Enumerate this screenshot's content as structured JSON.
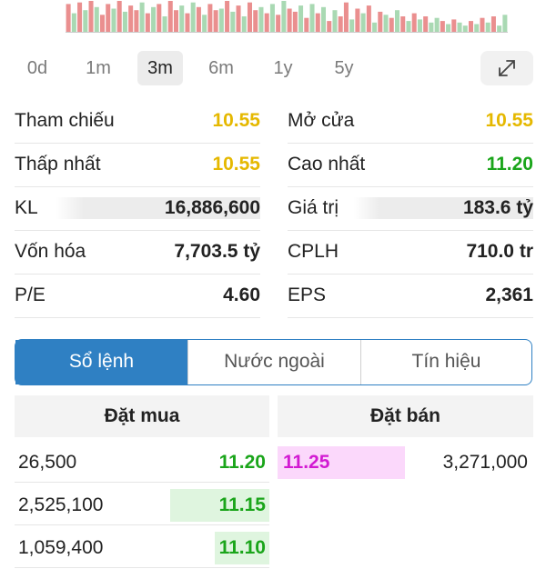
{
  "colors": {
    "up": "#1aa51a",
    "down": "#e27373",
    "ref": "#e5b800",
    "ceiling": "#d21ad2",
    "accent": "#2f80c3",
    "vol_up": "#a9d9b3",
    "vol_down": "#ea8f8f"
  },
  "volume_bars": {
    "values": [
      0.9,
      0.6,
      0.95,
      0.7,
      1.0,
      0.8,
      0.55,
      0.9,
      0.75,
      1.0,
      0.65,
      0.85,
      0.7,
      0.95,
      0.6,
      0.8,
      0.9,
      0.5,
      1.0,
      0.7,
      0.85,
      0.6,
      0.95,
      0.8,
      0.55,
      0.9,
      0.7,
      0.75,
      1.0,
      0.65,
      0.85,
      0.5,
      0.95,
      0.7,
      0.8,
      0.6,
      0.9,
      0.55,
      1.0,
      0.75,
      0.65,
      0.85,
      0.45,
      0.9,
      0.6,
      0.8,
      0.35,
      0.7,
      0.5,
      0.95,
      0.4,
      0.75,
      0.6,
      0.85,
      0.3,
      0.65,
      0.55,
      0.45,
      0.7,
      0.5,
      0.35,
      0.6,
      0.4,
      0.5,
      0.3,
      0.45,
      0.35,
      0.25,
      0.4,
      0.3,
      0.2,
      0.35,
      0.25,
      0.45,
      0.3,
      0.5,
      0.2,
      0.55
    ],
    "directions": [
      "d",
      "u",
      "d",
      "u",
      "d",
      "u",
      "d",
      "d",
      "u",
      "d",
      "u",
      "d",
      "d",
      "u",
      "d",
      "u",
      "d",
      "u",
      "d",
      "d",
      "u",
      "d",
      "u",
      "d",
      "u",
      "d",
      "d",
      "u",
      "d",
      "u",
      "d",
      "u",
      "d",
      "d",
      "u",
      "d",
      "u",
      "d",
      "u",
      "d",
      "d",
      "u",
      "d",
      "u",
      "d",
      "u",
      "d",
      "u",
      "d",
      "d",
      "u",
      "d",
      "u",
      "d",
      "u",
      "d",
      "u",
      "d",
      "u",
      "d",
      "u",
      "d",
      "u",
      "d",
      "u",
      "u",
      "d",
      "u",
      "d",
      "u",
      "u",
      "d",
      "u",
      "d",
      "u",
      "d",
      "u",
      "u"
    ]
  },
  "periods": {
    "items": [
      "0d",
      "1m",
      "3m",
      "6m",
      "1y",
      "5y"
    ],
    "active": "3m",
    "expand_icon": "expand-diagonal-icon"
  },
  "stats": {
    "tham_chieu": {
      "label": "Tham chiếu",
      "value": "10.55"
    },
    "mo_cua": {
      "label": "Mở cửa",
      "value": "10.55"
    },
    "thap_nhat": {
      "label": "Thấp nhất",
      "value": "10.55"
    },
    "cao_nhat": {
      "label": "Cao nhất",
      "value": "11.20"
    },
    "kl": {
      "label": "KL",
      "value": "16,886,600"
    },
    "gia_tri": {
      "label": "Giá trị",
      "value": "183.6 tỷ"
    },
    "von_hoa": {
      "label": "Vốn hóa",
      "value": "7,703.5 tỷ"
    },
    "cplh": {
      "label": "CPLH",
      "value": "710.0 tr"
    },
    "pe": {
      "label": "P/E",
      "value": "4.60"
    },
    "eps": {
      "label": "EPS",
      "value": "2,361"
    }
  },
  "tabs": {
    "so_lenh": "Sổ lệnh",
    "nuoc_ngoai": "Nước ngoài",
    "tin_hieu": "Tín hiệu"
  },
  "orderbook": {
    "buy_header": "Đặt mua",
    "sell_header": "Đặt bán",
    "rows": [
      {
        "buy_vol": "26,500",
        "buy_price": "11.20",
        "buy_bar_pct": 0,
        "sell_price": "11.25",
        "sell_vol": "3,271,000"
      },
      {
        "buy_vol": "2,525,100",
        "buy_price": "11.15",
        "buy_bar_pct": 0.39
      },
      {
        "buy_vol": "1,059,400",
        "buy_price": "11.10",
        "buy_bar_pct": 0.16
      }
    ]
  }
}
